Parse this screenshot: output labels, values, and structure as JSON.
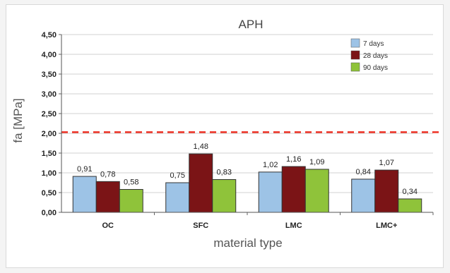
{
  "chart_data": {
    "type": "bar",
    "title": "APH",
    "xlabel": "material type",
    "ylabel": "fa [MPa]",
    "categories": [
      "OC",
      "SFC",
      "LMC",
      "LMC+"
    ],
    "series": [
      {
        "name": "7 days",
        "color": "#9dc3e6",
        "values": [
          0.91,
          0.75,
          1.02,
          0.84
        ],
        "labels": [
          "0,91",
          "0,75",
          "1,02",
          "0,84"
        ]
      },
      {
        "name": "28 days",
        "color": "#7b1416",
        "values": [
          0.78,
          1.48,
          1.16,
          1.07
        ],
        "labels": [
          "0,78",
          "1,48",
          "1,16",
          "1,07"
        ]
      },
      {
        "name": "90 days",
        "color": "#8fc33a",
        "values": [
          0.58,
          0.83,
          1.09,
          0.34
        ],
        "labels": [
          "0,58",
          "0,83",
          "1,09",
          "0,34"
        ]
      }
    ],
    "ylim": [
      0,
      4.5
    ],
    "yticks": [
      0,
      0.5,
      1,
      1.5,
      2,
      2.5,
      3,
      3.5,
      4,
      4.5
    ],
    "ytick_labels": [
      "0,00",
      "0,50",
      "1,00",
      "1,50",
      "2,00",
      "2,50",
      "3,00",
      "3,50",
      "4,00",
      "4,50"
    ],
    "reference_line": {
      "value": 2.03,
      "color": "#ee3124",
      "style": "dashed"
    },
    "grid": true,
    "legend_position": "top-right"
  }
}
